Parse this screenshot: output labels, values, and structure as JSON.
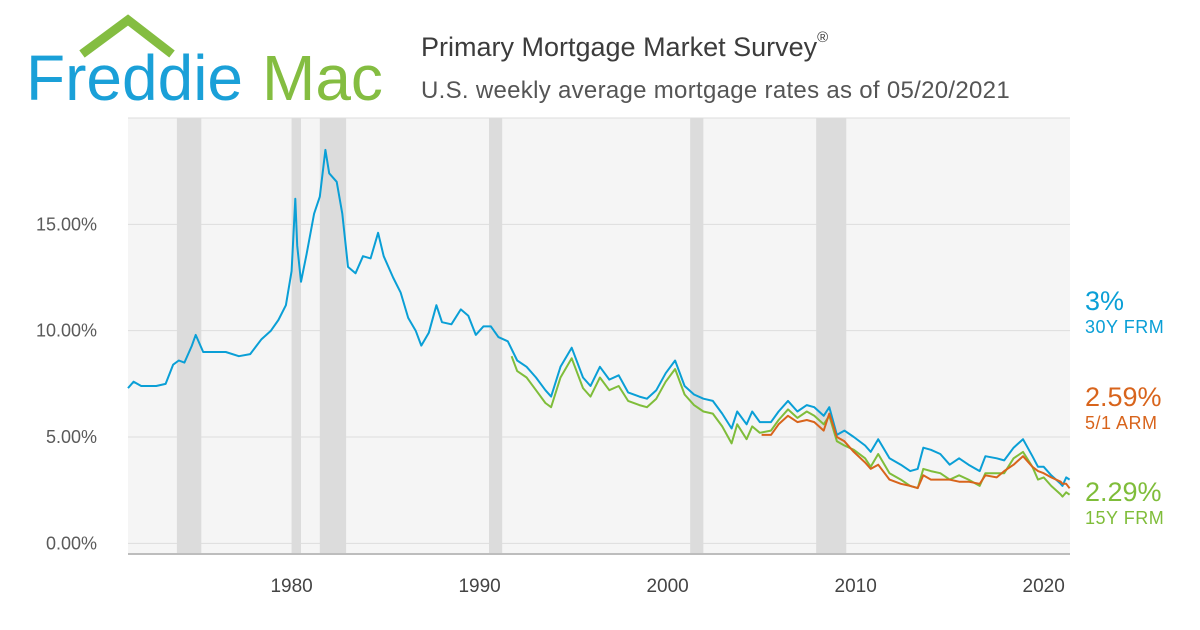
{
  "header": {
    "logo_text_a": "Freddie",
    "logo_text_b": "Mac",
    "title": "Primary Mortgage Market Survey",
    "title_mark": "®",
    "subtitle": "U.S. weekly average mortgage rates as of 05/20/2021"
  },
  "colors": {
    "logo_blue": "#1aa0d8",
    "logo_green": "#84bd41",
    "frm30": "#0a9fd6",
    "arm51": "#d8641c",
    "frm15": "#7fbd3a",
    "recession": "#dcdcdc",
    "plot_bg": "#f5f5f5"
  },
  "end_labels": [
    {
      "value": "3%",
      "name": "30Y FRM",
      "color": "#0a9fd6"
    },
    {
      "value": "2.59%",
      "name": "5/1 ARM",
      "color": "#d8641c"
    },
    {
      "value": "2.29%",
      "name": "15Y FRM",
      "color": "#7fbd3a"
    }
  ],
  "chart_data": {
    "type": "line",
    "x_range": [
      1971.3,
      2021.4
    ],
    "ylim": [
      -0.5,
      20
    ],
    "y_ticks": [
      {
        "value": 0,
        "label": "0.00%"
      },
      {
        "value": 5,
        "label": "5.00%"
      },
      {
        "value": 10,
        "label": "10.00%"
      },
      {
        "value": 15,
        "label": "15.00%"
      }
    ],
    "x_ticks": [
      {
        "value": 1980,
        "label": "1980"
      },
      {
        "value": 1990,
        "label": "1990"
      },
      {
        "value": 2000,
        "label": "2000"
      },
      {
        "value": 2010,
        "label": "2010"
      },
      {
        "value": 2020,
        "label": "2020"
      }
    ],
    "grid": true,
    "recessions": [
      [
        1973.9,
        1975.2
      ],
      [
        1980.0,
        1980.5
      ],
      [
        1981.5,
        1982.9
      ],
      [
        1990.5,
        1991.2
      ],
      [
        2001.2,
        2001.9
      ],
      [
        2007.9,
        2009.5
      ]
    ],
    "series": [
      {
        "name": "30Y FRM",
        "color": "#0a9fd6",
        "points": [
          [
            1971.3,
            7.3
          ],
          [
            1971.6,
            7.6
          ],
          [
            1972.0,
            7.4
          ],
          [
            1972.8,
            7.4
          ],
          [
            1973.3,
            7.5
          ],
          [
            1973.7,
            8.4
          ],
          [
            1974.0,
            8.6
          ],
          [
            1974.3,
            8.5
          ],
          [
            1974.7,
            9.3
          ],
          [
            1974.9,
            9.8
          ],
          [
            1975.3,
            9.0
          ],
          [
            1976.0,
            9.0
          ],
          [
            1976.5,
            9.0
          ],
          [
            1977.2,
            8.8
          ],
          [
            1977.8,
            8.9
          ],
          [
            1978.4,
            9.6
          ],
          [
            1978.9,
            10.0
          ],
          [
            1979.3,
            10.5
          ],
          [
            1979.7,
            11.2
          ],
          [
            1980.0,
            12.8
          ],
          [
            1980.2,
            16.2
          ],
          [
            1980.3,
            14.0
          ],
          [
            1980.5,
            12.3
          ],
          [
            1980.8,
            13.6
          ],
          [
            1981.2,
            15.5
          ],
          [
            1981.5,
            16.3
          ],
          [
            1981.8,
            18.5
          ],
          [
            1982.0,
            17.4
          ],
          [
            1982.4,
            17.0
          ],
          [
            1982.7,
            15.5
          ],
          [
            1983.0,
            13.0
          ],
          [
            1983.4,
            12.7
          ],
          [
            1983.8,
            13.5
          ],
          [
            1984.2,
            13.4
          ],
          [
            1984.6,
            14.6
          ],
          [
            1984.9,
            13.5
          ],
          [
            1985.4,
            12.5
          ],
          [
            1985.8,
            11.8
          ],
          [
            1986.2,
            10.6
          ],
          [
            1986.6,
            10.0
          ],
          [
            1986.9,
            9.3
          ],
          [
            1987.3,
            9.9
          ],
          [
            1987.7,
            11.2
          ],
          [
            1988.0,
            10.4
          ],
          [
            1988.5,
            10.3
          ],
          [
            1989.0,
            11.0
          ],
          [
            1989.4,
            10.7
          ],
          [
            1989.8,
            9.8
          ],
          [
            1990.2,
            10.2
          ],
          [
            1990.6,
            10.2
          ],
          [
            1991.0,
            9.7
          ],
          [
            1991.5,
            9.5
          ],
          [
            1992.0,
            8.6
          ],
          [
            1992.5,
            8.3
          ],
          [
            1993.0,
            7.8
          ],
          [
            1993.5,
            7.2
          ],
          [
            1993.8,
            6.9
          ],
          [
            1994.3,
            8.3
          ],
          [
            1994.9,
            9.2
          ],
          [
            1995.5,
            7.8
          ],
          [
            1995.9,
            7.4
          ],
          [
            1996.4,
            8.3
          ],
          [
            1996.9,
            7.7
          ],
          [
            1997.4,
            7.9
          ],
          [
            1997.9,
            7.1
          ],
          [
            1998.5,
            6.9
          ],
          [
            1998.9,
            6.8
          ],
          [
            1999.4,
            7.2
          ],
          [
            1999.9,
            8.0
          ],
          [
            2000.4,
            8.6
          ],
          [
            2000.9,
            7.4
          ],
          [
            2001.4,
            7.0
          ],
          [
            2001.9,
            6.8
          ],
          [
            2002.4,
            6.7
          ],
          [
            2002.9,
            6.1
          ],
          [
            2003.4,
            5.4
          ],
          [
            2003.7,
            6.2
          ],
          [
            2004.2,
            5.6
          ],
          [
            2004.5,
            6.2
          ],
          [
            2004.9,
            5.7
          ],
          [
            2005.5,
            5.7
          ],
          [
            2005.9,
            6.2
          ],
          [
            2006.4,
            6.7
          ],
          [
            2006.9,
            6.2
          ],
          [
            2007.4,
            6.5
          ],
          [
            2007.8,
            6.4
          ],
          [
            2008.3,
            6.0
          ],
          [
            2008.6,
            6.4
          ],
          [
            2009.0,
            5.1
          ],
          [
            2009.4,
            5.3
          ],
          [
            2009.9,
            5.0
          ],
          [
            2010.5,
            4.6
          ],
          [
            2010.8,
            4.3
          ],
          [
            2011.2,
            4.9
          ],
          [
            2011.8,
            4.0
          ],
          [
            2012.4,
            3.7
          ],
          [
            2012.9,
            3.4
          ],
          [
            2013.3,
            3.5
          ],
          [
            2013.6,
            4.5
          ],
          [
            2014.0,
            4.4
          ],
          [
            2014.5,
            4.2
          ],
          [
            2015.0,
            3.7
          ],
          [
            2015.5,
            4.0
          ],
          [
            2016.0,
            3.7
          ],
          [
            2016.6,
            3.4
          ],
          [
            2016.9,
            4.1
          ],
          [
            2017.5,
            4.0
          ],
          [
            2017.9,
            3.9
          ],
          [
            2018.4,
            4.5
          ],
          [
            2018.9,
            4.9
          ],
          [
            2019.4,
            4.1
          ],
          [
            2019.7,
            3.6
          ],
          [
            2020.0,
            3.6
          ],
          [
            2020.4,
            3.2
          ],
          [
            2020.9,
            2.8
          ],
          [
            2021.0,
            2.7
          ],
          [
            2021.2,
            3.1
          ],
          [
            2021.38,
            3.0
          ]
        ]
      },
      {
        "name": "15Y FRM",
        "color": "#7fbd3a",
        "points": [
          [
            1991.7,
            8.8
          ],
          [
            1992.0,
            8.1
          ],
          [
            1992.5,
            7.8
          ],
          [
            1993.0,
            7.2
          ],
          [
            1993.5,
            6.6
          ],
          [
            1993.8,
            6.4
          ],
          [
            1994.3,
            7.8
          ],
          [
            1994.9,
            8.7
          ],
          [
            1995.5,
            7.3
          ],
          [
            1995.9,
            6.9
          ],
          [
            1996.4,
            7.8
          ],
          [
            1996.9,
            7.2
          ],
          [
            1997.4,
            7.4
          ],
          [
            1997.9,
            6.7
          ],
          [
            1998.5,
            6.5
          ],
          [
            1998.9,
            6.4
          ],
          [
            1999.4,
            6.8
          ],
          [
            1999.9,
            7.6
          ],
          [
            2000.4,
            8.2
          ],
          [
            2000.9,
            7.0
          ],
          [
            2001.4,
            6.5
          ],
          [
            2001.9,
            6.2
          ],
          [
            2002.4,
            6.1
          ],
          [
            2002.9,
            5.5
          ],
          [
            2003.4,
            4.7
          ],
          [
            2003.7,
            5.6
          ],
          [
            2004.2,
            4.9
          ],
          [
            2004.5,
            5.5
          ],
          [
            2004.9,
            5.2
          ],
          [
            2005.5,
            5.3
          ],
          [
            2005.9,
            5.8
          ],
          [
            2006.4,
            6.3
          ],
          [
            2006.9,
            5.9
          ],
          [
            2007.4,
            6.2
          ],
          [
            2007.8,
            6.0
          ],
          [
            2008.3,
            5.6
          ],
          [
            2008.6,
            6.0
          ],
          [
            2009.0,
            4.8
          ],
          [
            2009.4,
            4.6
          ],
          [
            2009.9,
            4.4
          ],
          [
            2010.5,
            4.0
          ],
          [
            2010.8,
            3.6
          ],
          [
            2011.2,
            4.2
          ],
          [
            2011.8,
            3.3
          ],
          [
            2012.4,
            3.0
          ],
          [
            2012.9,
            2.7
          ],
          [
            2013.3,
            2.6
          ],
          [
            2013.6,
            3.5
          ],
          [
            2014.0,
            3.4
          ],
          [
            2014.5,
            3.3
          ],
          [
            2015.0,
            3.0
          ],
          [
            2015.5,
            3.2
          ],
          [
            2016.0,
            3.0
          ],
          [
            2016.6,
            2.7
          ],
          [
            2016.9,
            3.3
          ],
          [
            2017.5,
            3.3
          ],
          [
            2017.9,
            3.3
          ],
          [
            2018.4,
            4.0
          ],
          [
            2018.9,
            4.3
          ],
          [
            2019.4,
            3.6
          ],
          [
            2019.7,
            3.0
          ],
          [
            2020.0,
            3.1
          ],
          [
            2020.4,
            2.7
          ],
          [
            2020.9,
            2.3
          ],
          [
            2021.0,
            2.2
          ],
          [
            2021.2,
            2.4
          ],
          [
            2021.38,
            2.29
          ]
        ]
      },
      {
        "name": "5/1 ARM",
        "color": "#d8641c",
        "points": [
          [
            2005.0,
            5.1
          ],
          [
            2005.5,
            5.1
          ],
          [
            2005.9,
            5.6
          ],
          [
            2006.4,
            6.0
          ],
          [
            2006.9,
            5.7
          ],
          [
            2007.4,
            5.8
          ],
          [
            2007.8,
            5.7
          ],
          [
            2008.3,
            5.3
          ],
          [
            2008.6,
            6.1
          ],
          [
            2009.0,
            5.0
          ],
          [
            2009.4,
            4.8
          ],
          [
            2009.9,
            4.3
          ],
          [
            2010.5,
            3.8
          ],
          [
            2010.8,
            3.5
          ],
          [
            2011.2,
            3.7
          ],
          [
            2011.8,
            3.0
          ],
          [
            2012.4,
            2.8
          ],
          [
            2012.9,
            2.7
          ],
          [
            2013.3,
            2.6
          ],
          [
            2013.6,
            3.2
          ],
          [
            2014.0,
            3.0
          ],
          [
            2014.5,
            3.0
          ],
          [
            2015.0,
            3.0
          ],
          [
            2015.5,
            2.9
          ],
          [
            2016.0,
            2.9
          ],
          [
            2016.6,
            2.8
          ],
          [
            2016.9,
            3.2
          ],
          [
            2017.5,
            3.1
          ],
          [
            2017.9,
            3.4
          ],
          [
            2018.4,
            3.7
          ],
          [
            2018.9,
            4.1
          ],
          [
            2019.4,
            3.6
          ],
          [
            2019.7,
            3.4
          ],
          [
            2020.0,
            3.3
          ],
          [
            2020.4,
            3.1
          ],
          [
            2020.9,
            2.9
          ],
          [
            2021.0,
            2.8
          ],
          [
            2021.2,
            2.8
          ],
          [
            2021.38,
            2.59
          ]
        ]
      }
    ]
  }
}
